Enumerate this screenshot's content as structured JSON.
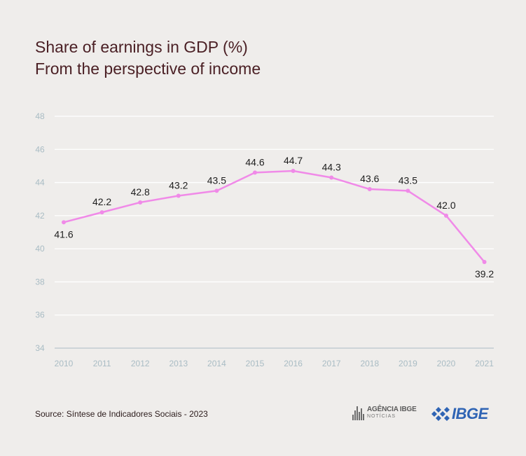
{
  "title": {
    "line1": "Share of earnings in GDP (%)",
    "line2": "From the perspective of income"
  },
  "source": "Source: Síntese de Indicadores Sociais - 2023",
  "logos": {
    "agencia_line1": "AGÊNCIA IBGE",
    "agencia_line2": "NOTÍCIAS",
    "ibge": "IBGE"
  },
  "colors": {
    "background": "#efedeb",
    "line": "#f08ae8",
    "grid": "#ffffff",
    "axis_tick_label": "#a9bcc4",
    "title": "#4a1f24"
  },
  "chart_data": {
    "type": "line",
    "categories": [
      "2010",
      "2011",
      "2012",
      "2013",
      "2014",
      "2015",
      "2016",
      "2017",
      "2018",
      "2019",
      "2020",
      "2021"
    ],
    "values": [
      41.6,
      42.2,
      42.8,
      43.2,
      43.5,
      44.6,
      44.7,
      44.3,
      43.6,
      43.5,
      42.0,
      39.2
    ],
    "data_labels": [
      "41.6",
      "42.2",
      "42.8",
      "43.2",
      "43.5",
      "44.6",
      "44.7",
      "44.3",
      "43.6",
      "43.5",
      "42.0",
      "39.2"
    ],
    "yticks": [
      "34",
      "36",
      "38",
      "40",
      "42",
      "44",
      "46",
      "48"
    ],
    "ylim": [
      34,
      48
    ],
    "grid": true,
    "title": "Share of earnings in GDP (%)",
    "subtitle": "From the perspective of income"
  }
}
